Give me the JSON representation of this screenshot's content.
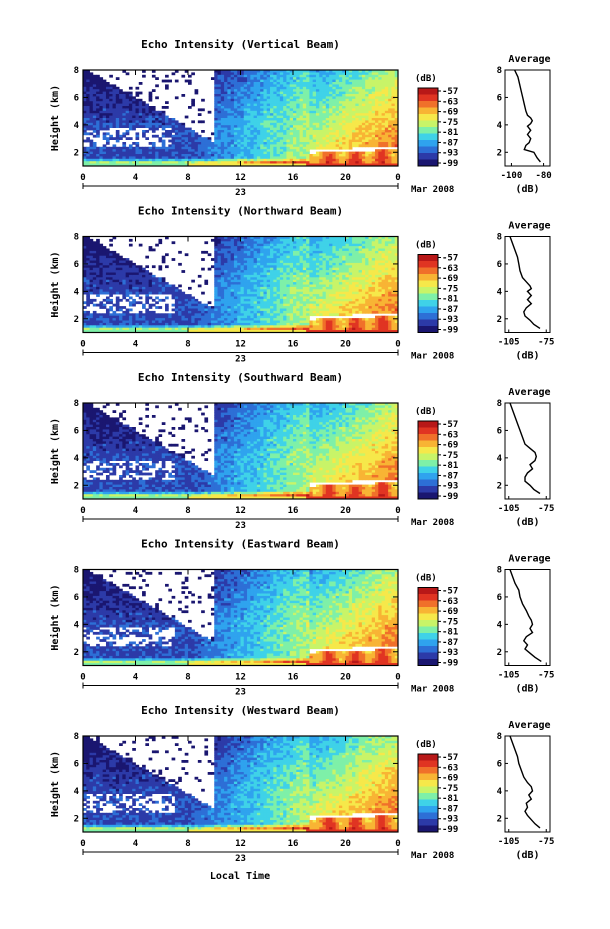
{
  "colors": {
    "colormap": [
      "#1a1670",
      "#2c3aa8",
      "#2d6fd6",
      "#2fa3ee",
      "#3fd2e8",
      "#7ef0a8",
      "#c8f468",
      "#f6e84a",
      "#f8b434",
      "#f0702a",
      "#e03422",
      "#b81818"
    ],
    "background": "#ffffff",
    "line": "#000000"
  },
  "footer": {
    "xlabel": "Local Time"
  },
  "chart_data": [
    {
      "type": "heatmap",
      "title": "Echo Intensity (Vertical Beam)",
      "ylabel": "Height (km)",
      "yticks": [
        "2",
        "4",
        "6",
        "8"
      ],
      "ylim": [
        1,
        8
      ],
      "xticks": [
        "0",
        "4",
        "8",
        "12",
        "16",
        "20",
        "0"
      ],
      "xlim": [
        0,
        24
      ],
      "date_day": "23",
      "date_month": "Mar 2008",
      "colorbar": {
        "unit": "(dB)",
        "ticks": [
          "-57",
          "-63",
          "-69",
          "-75",
          "-81",
          "-87",
          "-93",
          "-99"
        ]
      },
      "profile": {
        "title": "Average",
        "xlabel": "(dB)",
        "xticks": [
          "-100",
          "-80"
        ],
        "yticks": [
          "2",
          "4",
          "6",
          "8"
        ],
        "xlim": [
          -104,
          -76
        ],
        "points": [
          [
            -98,
            8
          ],
          [
            -96,
            7.5
          ],
          [
            -95,
            7
          ],
          [
            -94,
            6.5
          ],
          [
            -93,
            6
          ],
          [
            -92,
            5.5
          ],
          [
            -91,
            5
          ],
          [
            -90,
            4.7
          ],
          [
            -88,
            4.5
          ],
          [
            -87,
            4.3
          ],
          [
            -88,
            4.1
          ],
          [
            -90,
            3.9
          ],
          [
            -88,
            3.6
          ],
          [
            -90,
            3.3
          ],
          [
            -88,
            3.0
          ],
          [
            -89,
            2.7
          ],
          [
            -91,
            2.5
          ],
          [
            -92,
            2.2
          ],
          [
            -86,
            2.0
          ],
          [
            -84,
            1.6
          ],
          [
            -82,
            1.3
          ]
        ]
      }
    },
    {
      "type": "heatmap",
      "title": "Echo Intensity (Northward Beam)",
      "ylabel": "Height (km)",
      "yticks": [
        "2",
        "4",
        "6",
        "8"
      ],
      "ylim": [
        1,
        8
      ],
      "xticks": [
        "0",
        "4",
        "8",
        "12",
        "16",
        "20",
        "0"
      ],
      "xlim": [
        0,
        24
      ],
      "date_day": "23",
      "date_month": "Mar 2008",
      "colorbar": {
        "unit": "(dB)",
        "ticks": [
          "-57",
          "-63",
          "-69",
          "-75",
          "-81",
          "-87",
          "-93",
          "-99"
        ]
      },
      "profile": {
        "title": "Average",
        "xlabel": "(dB)",
        "xticks": [
          "-105",
          "-75"
        ],
        "yticks": [
          "2",
          "4",
          "6",
          "8"
        ],
        "xlim": [
          -108,
          -72
        ],
        "points": [
          [
            -104,
            8
          ],
          [
            -102,
            7.5
          ],
          [
            -100,
            7
          ],
          [
            -98,
            6.5
          ],
          [
            -97,
            6
          ],
          [
            -96,
            5.5
          ],
          [
            -94,
            5
          ],
          [
            -91,
            4.7
          ],
          [
            -88,
            4.4
          ],
          [
            -87,
            4.2
          ],
          [
            -90,
            4.0
          ],
          [
            -87,
            3.7
          ],
          [
            -90,
            3.4
          ],
          [
            -87,
            3.1
          ],
          [
            -91,
            2.8
          ],
          [
            -93,
            2.5
          ],
          [
            -92,
            2.2
          ],
          [
            -88,
            1.9
          ],
          [
            -85,
            1.6
          ],
          [
            -80,
            1.3
          ]
        ]
      }
    },
    {
      "type": "heatmap",
      "title": "Echo Intensity (Southward Beam)",
      "ylabel": "Height (km)",
      "yticks": [
        "2",
        "4",
        "6",
        "8"
      ],
      "ylim": [
        1,
        8
      ],
      "xticks": [
        "0",
        "4",
        "8",
        "12",
        "16",
        "20",
        "0"
      ],
      "xlim": [
        0,
        24
      ],
      "date_day": "23",
      "date_month": "Mar 2008",
      "colorbar": {
        "unit": "(dB)",
        "ticks": [
          "-57",
          "-63",
          "-69",
          "-75",
          "-81",
          "-87",
          "-93",
          "-99"
        ]
      },
      "profile": {
        "title": "Average",
        "xlabel": "(dB)",
        "xticks": [
          "-105",
          "-75"
        ],
        "yticks": [
          "2",
          "4",
          "6",
          "8"
        ],
        "xlim": [
          -108,
          -72
        ],
        "points": [
          [
            -104,
            8
          ],
          [
            -102,
            7.5
          ],
          [
            -100,
            7
          ],
          [
            -98,
            6.5
          ],
          [
            -96,
            6
          ],
          [
            -94,
            5.5
          ],
          [
            -92,
            5
          ],
          [
            -88,
            4.7
          ],
          [
            -84,
            4.4
          ],
          [
            -83,
            4.1
          ],
          [
            -84,
            3.8
          ],
          [
            -88,
            3.5
          ],
          [
            -86,
            3.2
          ],
          [
            -90,
            2.9
          ],
          [
            -92,
            2.6
          ],
          [
            -92,
            2.3
          ],
          [
            -88,
            2.0
          ],
          [
            -85,
            1.7
          ],
          [
            -80,
            1.4
          ]
        ]
      }
    },
    {
      "type": "heatmap",
      "title": "Echo Intensity (Eastward Beam)",
      "ylabel": "Height (km)",
      "yticks": [
        "2",
        "4",
        "6",
        "8"
      ],
      "ylim": [
        1,
        8
      ],
      "xticks": [
        "0",
        "4",
        "8",
        "12",
        "16",
        "20",
        "0"
      ],
      "xlim": [
        0,
        24
      ],
      "date_day": "23",
      "date_month": "Mar 2008",
      "colorbar": {
        "unit": "(dB)",
        "ticks": [
          "-57",
          "-63",
          "-69",
          "-75",
          "-81",
          "-87",
          "-93",
          "-99"
        ]
      },
      "profile": {
        "title": "Average",
        "xlabel": "(dB)",
        "xticks": [
          "-105",
          "-75"
        ],
        "yticks": [
          "2",
          "4",
          "6",
          "8"
        ],
        "xlim": [
          -108,
          -72
        ],
        "points": [
          [
            -104,
            8
          ],
          [
            -102,
            7.5
          ],
          [
            -100,
            7
          ],
          [
            -97,
            6.5
          ],
          [
            -96,
            6
          ],
          [
            -94,
            5.5
          ],
          [
            -91,
            5
          ],
          [
            -89,
            4.6
          ],
          [
            -87,
            4.3
          ],
          [
            -86,
            4.0
          ],
          [
            -88,
            3.7
          ],
          [
            -86,
            3.4
          ],
          [
            -91,
            3.1
          ],
          [
            -93,
            2.8
          ],
          [
            -90,
            2.5
          ],
          [
            -92,
            2.2
          ],
          [
            -88,
            1.9
          ],
          [
            -84,
            1.6
          ],
          [
            -79,
            1.3
          ]
        ]
      }
    },
    {
      "type": "heatmap",
      "title": "Echo Intensity (Westward Beam)",
      "ylabel": "Height (km)",
      "yticks": [
        "2",
        "4",
        "6",
        "8"
      ],
      "ylim": [
        1,
        8
      ],
      "xticks": [
        "0",
        "4",
        "8",
        "12",
        "16",
        "20",
        "0"
      ],
      "xlim": [
        0,
        24
      ],
      "date_day": "23",
      "date_month": "Mar 2008",
      "colorbar": {
        "unit": "(dB)",
        "ticks": [
          "-57",
          "-63",
          "-69",
          "-75",
          "-81",
          "-87",
          "-93",
          "-99"
        ]
      },
      "profile": {
        "title": "Average",
        "xlabel": "(dB)",
        "xticks": [
          "-105",
          "-75"
        ],
        "yticks": [
          "2",
          "4",
          "6",
          "8"
        ],
        "xlim": [
          -108,
          -72
        ],
        "points": [
          [
            -104,
            8
          ],
          [
            -102,
            7.5
          ],
          [
            -100,
            7
          ],
          [
            -98,
            6.5
          ],
          [
            -97,
            6
          ],
          [
            -95,
            5.5
          ],
          [
            -93,
            5
          ],
          [
            -90,
            4.6
          ],
          [
            -87,
            4.3
          ],
          [
            -86,
            4.0
          ],
          [
            -89,
            3.7
          ],
          [
            -87,
            3.4
          ],
          [
            -91,
            3.1
          ],
          [
            -90,
            2.8
          ],
          [
            -92,
            2.5
          ],
          [
            -90,
            2.2
          ],
          [
            -87,
            1.9
          ],
          [
            -84,
            1.6
          ],
          [
            -80,
            1.3
          ]
        ]
      }
    }
  ]
}
